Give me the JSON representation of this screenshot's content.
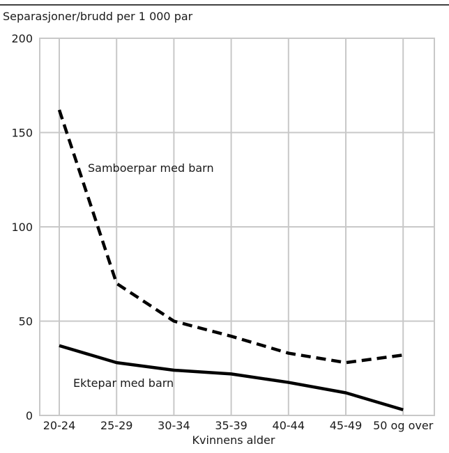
{
  "chart_data": {
    "type": "line",
    "ylabel": "Separasjoner/brudd  per 1 000 par",
    "xlabel": "Kvinnens alder",
    "categories": [
      "20-24",
      "25-29",
      "30-34",
      "35-39",
      "40-44",
      "45-49",
      "50 og over"
    ],
    "ylim": [
      0,
      200
    ],
    "yticks": [
      0,
      50,
      100,
      150,
      200
    ],
    "grid": true,
    "series": [
      {
        "name": "Samboerpar med barn",
        "style": "dashed",
        "color": "#000000",
        "values": [
          162,
          70,
          50,
          42,
          33,
          28,
          32
        ]
      },
      {
        "name": "Ektepar med barn",
        "style": "solid",
        "color": "#000000",
        "values": [
          37,
          28,
          24,
          22,
          17.5,
          12,
          3
        ]
      }
    ]
  },
  "colors": {
    "grid": "#c8c8c8",
    "line": "#000000",
    "frame": "#000000"
  }
}
